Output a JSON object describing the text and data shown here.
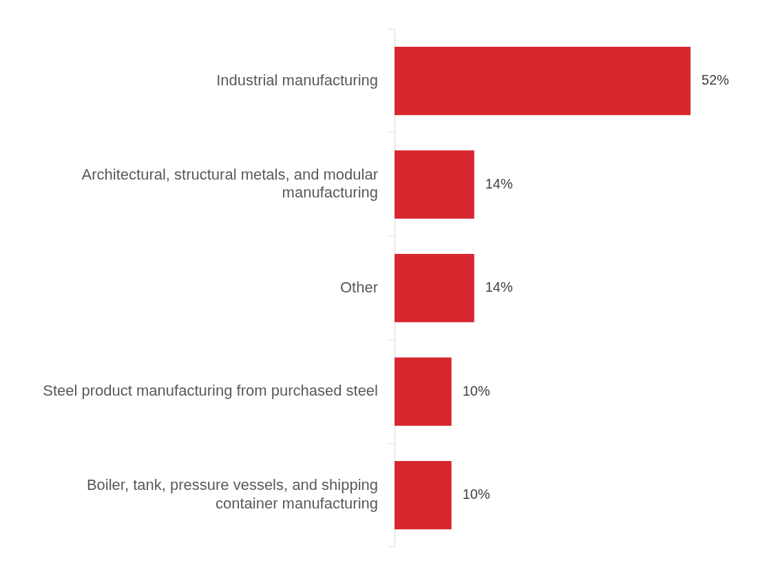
{
  "chart_data": {
    "type": "bar",
    "orientation": "horizontal",
    "categories": [
      "Industrial manufacturing",
      "Architectural, structural metals, and modular manufacturing",
      "Other",
      "Steel product manufacturing from purchased steel",
      "Boiler, tank, pressure vessels, and shipping container manufacturing"
    ],
    "values": [
      52,
      14,
      14,
      10,
      10
    ],
    "value_labels": [
      "52%",
      "14%",
      "14%",
      "10%",
      "10%"
    ],
    "color": "#d7262e",
    "legend": false
  }
}
